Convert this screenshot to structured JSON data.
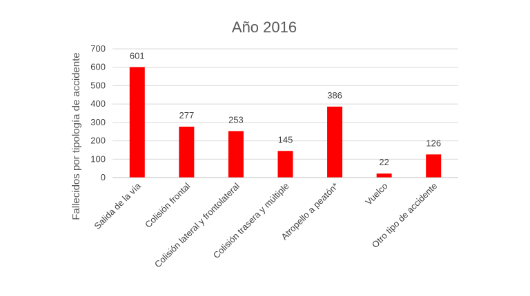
{
  "chart_data": {
    "type": "bar",
    "title": "Año 2016",
    "ylabel": "Fallecidos por tipología de accidente",
    "xlabel": "",
    "categories": [
      "Salida de la vía",
      "Colisión frontal",
      "Colisión lateral y frontolateral",
      "Colisión trasera y múltiple",
      "Atropello a peatón*",
      "Vuelco",
      "Otro tipo de accidente"
    ],
    "values": [
      601,
      277,
      253,
      145,
      386,
      22,
      126
    ],
    "ylim": [
      0,
      700
    ],
    "yticks": [
      0,
      100,
      200,
      300,
      400,
      500,
      600,
      700
    ],
    "grid": true,
    "legend": "none",
    "bar_color": "#ff0000"
  }
}
